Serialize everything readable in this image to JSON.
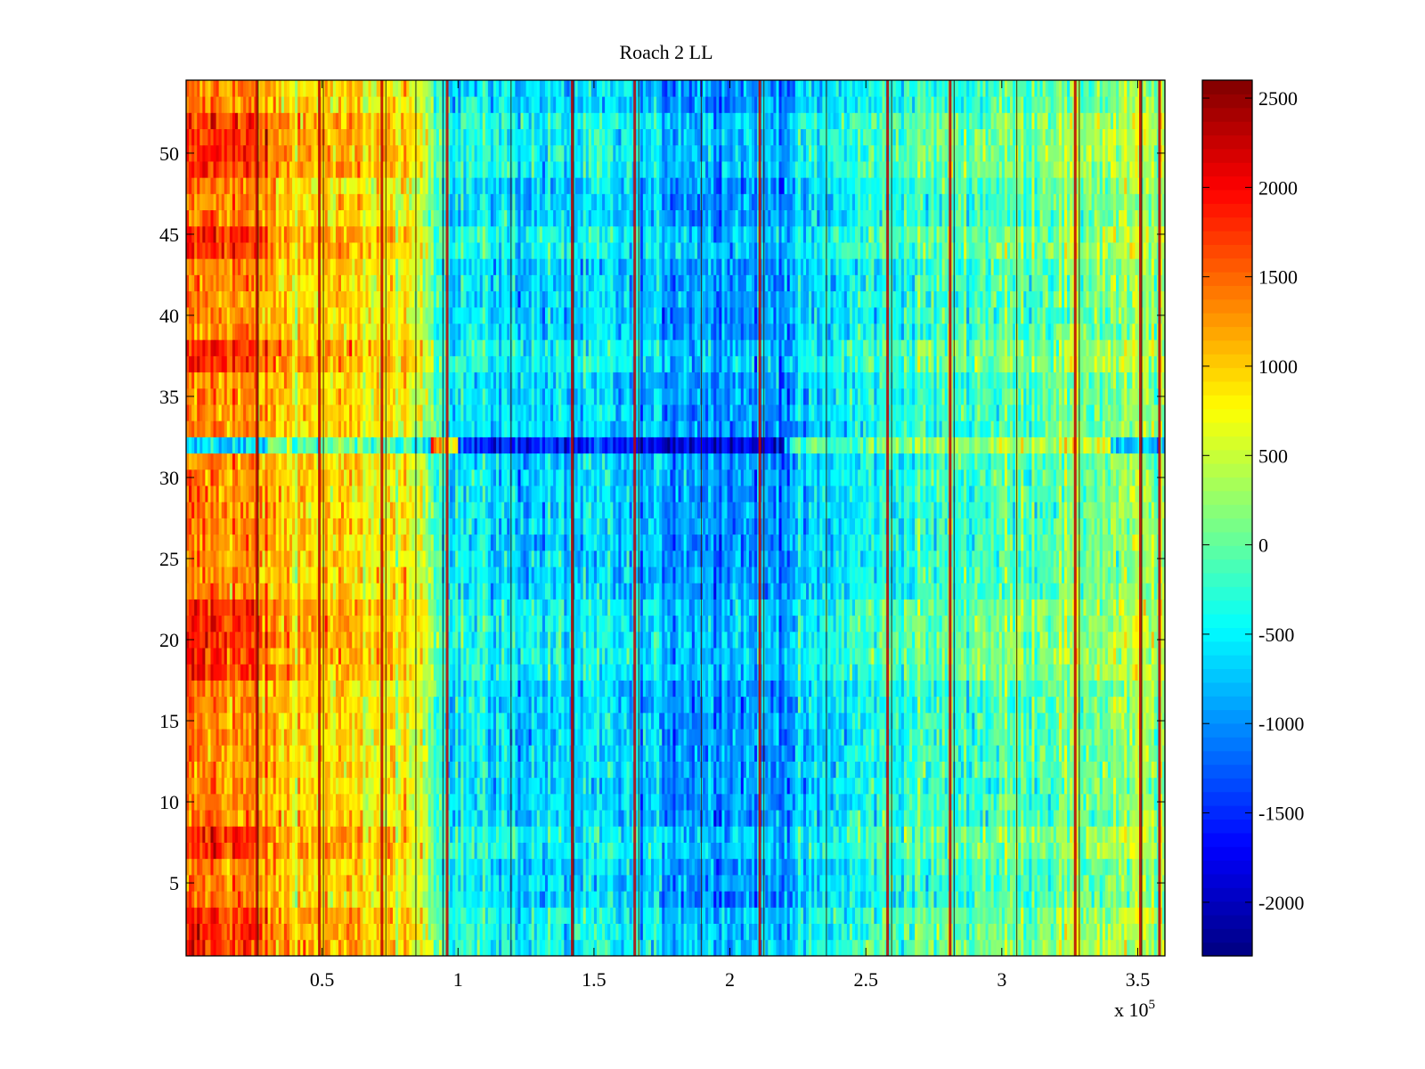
{
  "chart_data": {
    "type": "heatmap",
    "title": "Roach 2 LL",
    "xlabel": "",
    "ylabel": "",
    "x_exponent_label": {
      "base": "x 10",
      "exponent": "5"
    },
    "xlim": [
      0.0,
      3.6
    ],
    "ylim": [
      0.5,
      54.5
    ],
    "x_ticks": [
      0.5,
      1,
      1.5,
      2,
      2.5,
      3,
      3.5
    ],
    "x_tick_labels": [
      "0.5",
      "1",
      "1.5",
      "2",
      "2.5",
      "3",
      "3.5"
    ],
    "y_ticks": [
      5,
      10,
      15,
      20,
      25,
      30,
      35,
      40,
      45,
      50
    ],
    "y_tick_labels": [
      "5",
      "10",
      "15",
      "20",
      "25",
      "30",
      "35",
      "40",
      "45",
      "50"
    ],
    "rows": 54,
    "colormap": "jet",
    "colorbar": {
      "range": [
        -2300,
        2600
      ],
      "ticks": [
        -2000,
        -1500,
        -1000,
        -500,
        0,
        500,
        1000,
        1500,
        2000,
        2500
      ],
      "tick_labels": [
        "-2000",
        "-1500",
        "-1000",
        "-500",
        "0",
        "500",
        "1000",
        "1500",
        "2000",
        "2500"
      ]
    },
    "column_profile": {
      "description": "approximate mean value per x position (x in units of 10^5)",
      "x": [
        0.0,
        0.1,
        0.2,
        0.3,
        0.4,
        0.5,
        0.6,
        0.7,
        0.8,
        0.9,
        0.95,
        1.0,
        1.2,
        1.4,
        1.6,
        1.8,
        2.0,
        2.2,
        2.4,
        2.6,
        2.8,
        3.0,
        3.2,
        3.4,
        3.6
      ],
      "values": [
        1300,
        1400,
        1300,
        1100,
        950,
        900,
        850,
        800,
        700,
        300,
        -350,
        -500,
        -650,
        -700,
        -700,
        -900,
        -900,
        -950,
        -550,
        -300,
        -200,
        -100,
        50,
        150,
        200
      ]
    },
    "row_offsets": [
      {
        "rows": [
          1,
          2,
          3,
          7,
          8,
          18,
          19,
          20,
          21,
          22,
          37,
          38,
          44,
          45,
          49,
          50,
          51,
          52
        ],
        "offset": 450
      },
      {
        "rows": [
          32
        ],
        "offset": -900
      }
    ],
    "hot_columns_x": [
      0.26,
      0.49,
      0.72,
      0.96,
      1.42,
      1.65,
      2.11,
      2.58,
      2.81,
      3.27,
      3.51,
      3.58
    ],
    "dark_lines_x": [
      0.26,
      0.5,
      0.73,
      0.84,
      0.94,
      1.19,
      1.42,
      1.66,
      1.89,
      2.12,
      2.35,
      2.59,
      2.82,
      3.05,
      3.28,
      3.51
    ]
  }
}
